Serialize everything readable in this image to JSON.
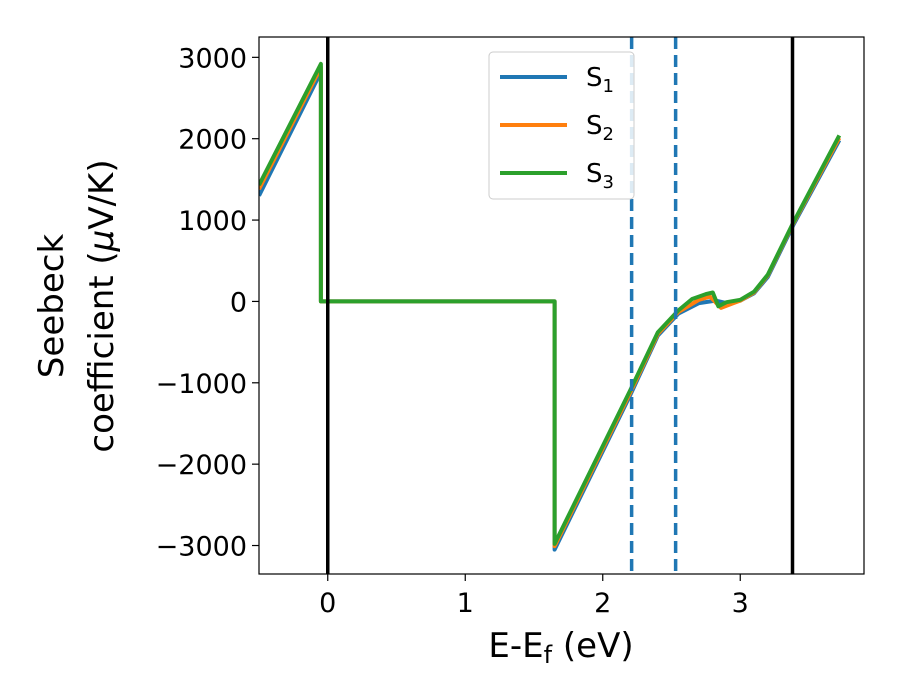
{
  "chart_data": {
    "type": "line",
    "xlabel": "E-E",
    "xlabel_sub": "f",
    "xlabel_unit": " (eV)",
    "ylabel_line1": "Seebeck",
    "ylabel_line2": "coefficient  (",
    "ylabel_mu": "μ",
    "ylabel_unit": "V/K)",
    "xlim": [
      -0.5,
      3.9
    ],
    "ylim": [
      -3350,
      3250
    ],
    "xticks": [
      0,
      1,
      2,
      3
    ],
    "xtick_labels": [
      "0",
      "1",
      "2",
      "3"
    ],
    "yticks": [
      3000,
      2000,
      1000,
      0,
      -1000,
      -2000,
      -3000
    ],
    "ytick_labels": [
      "3000",
      "2000",
      "1000",
      "0",
      "−1000",
      "−2000",
      "−3000"
    ],
    "grid": false,
    "legend_position": "top-center",
    "vertical_lines": [
      {
        "x": 0.0,
        "style": "solid",
        "color": "#000000"
      },
      {
        "x": 2.21,
        "style": "dashed",
        "color": "#1f77b4"
      },
      {
        "x": 2.53,
        "style": "dashed",
        "color": "#1f77b4"
      },
      {
        "x": 3.38,
        "style": "solid",
        "color": "#000000"
      }
    ],
    "series": [
      {
        "name": "S",
        "sub": "1",
        "color": "#1f77b4",
        "points": [
          [
            -0.5,
            1300
          ],
          [
            -0.05,
            2820
          ],
          [
            -0.05,
            0
          ],
          [
            1.65,
            0
          ],
          [
            1.65,
            -3050
          ],
          [
            2.2,
            -1150
          ],
          [
            2.4,
            -420
          ],
          [
            2.55,
            -150
          ],
          [
            2.7,
            -20
          ],
          [
            2.82,
            10
          ],
          [
            2.9,
            -20
          ],
          [
            3.0,
            10
          ],
          [
            3.1,
            100
          ],
          [
            3.2,
            300
          ],
          [
            3.38,
            920
          ],
          [
            3.72,
            1980
          ]
        ]
      },
      {
        "name": "S",
        "sub": "2",
        "color": "#ff7f0e",
        "points": [
          [
            -0.5,
            1380
          ],
          [
            -0.05,
            2880
          ],
          [
            -0.05,
            0
          ],
          [
            1.65,
            0
          ],
          [
            1.65,
            -3010
          ],
          [
            2.2,
            -1120
          ],
          [
            2.4,
            -400
          ],
          [
            2.55,
            -130
          ],
          [
            2.7,
            20
          ],
          [
            2.78,
            60
          ],
          [
            2.86,
            -80
          ],
          [
            2.95,
            -20
          ],
          [
            3.0,
            10
          ],
          [
            3.1,
            110
          ],
          [
            3.2,
            320
          ],
          [
            3.38,
            940
          ],
          [
            3.72,
            2010
          ]
        ]
      },
      {
        "name": "S",
        "sub": "3",
        "color": "#2ca02c",
        "points": [
          [
            -0.5,
            1430
          ],
          [
            -0.05,
            2920
          ],
          [
            -0.05,
            0
          ],
          [
            1.65,
            0
          ],
          [
            1.65,
            -2980
          ],
          [
            2.2,
            -1090
          ],
          [
            2.4,
            -380
          ],
          [
            2.55,
            -110
          ],
          [
            2.65,
            30
          ],
          [
            2.75,
            90
          ],
          [
            2.8,
            110
          ],
          [
            2.84,
            -60
          ],
          [
            2.9,
            -10
          ],
          [
            3.0,
            20
          ],
          [
            3.1,
            120
          ],
          [
            3.2,
            330
          ],
          [
            3.38,
            950
          ],
          [
            3.72,
            2040
          ]
        ]
      }
    ]
  }
}
